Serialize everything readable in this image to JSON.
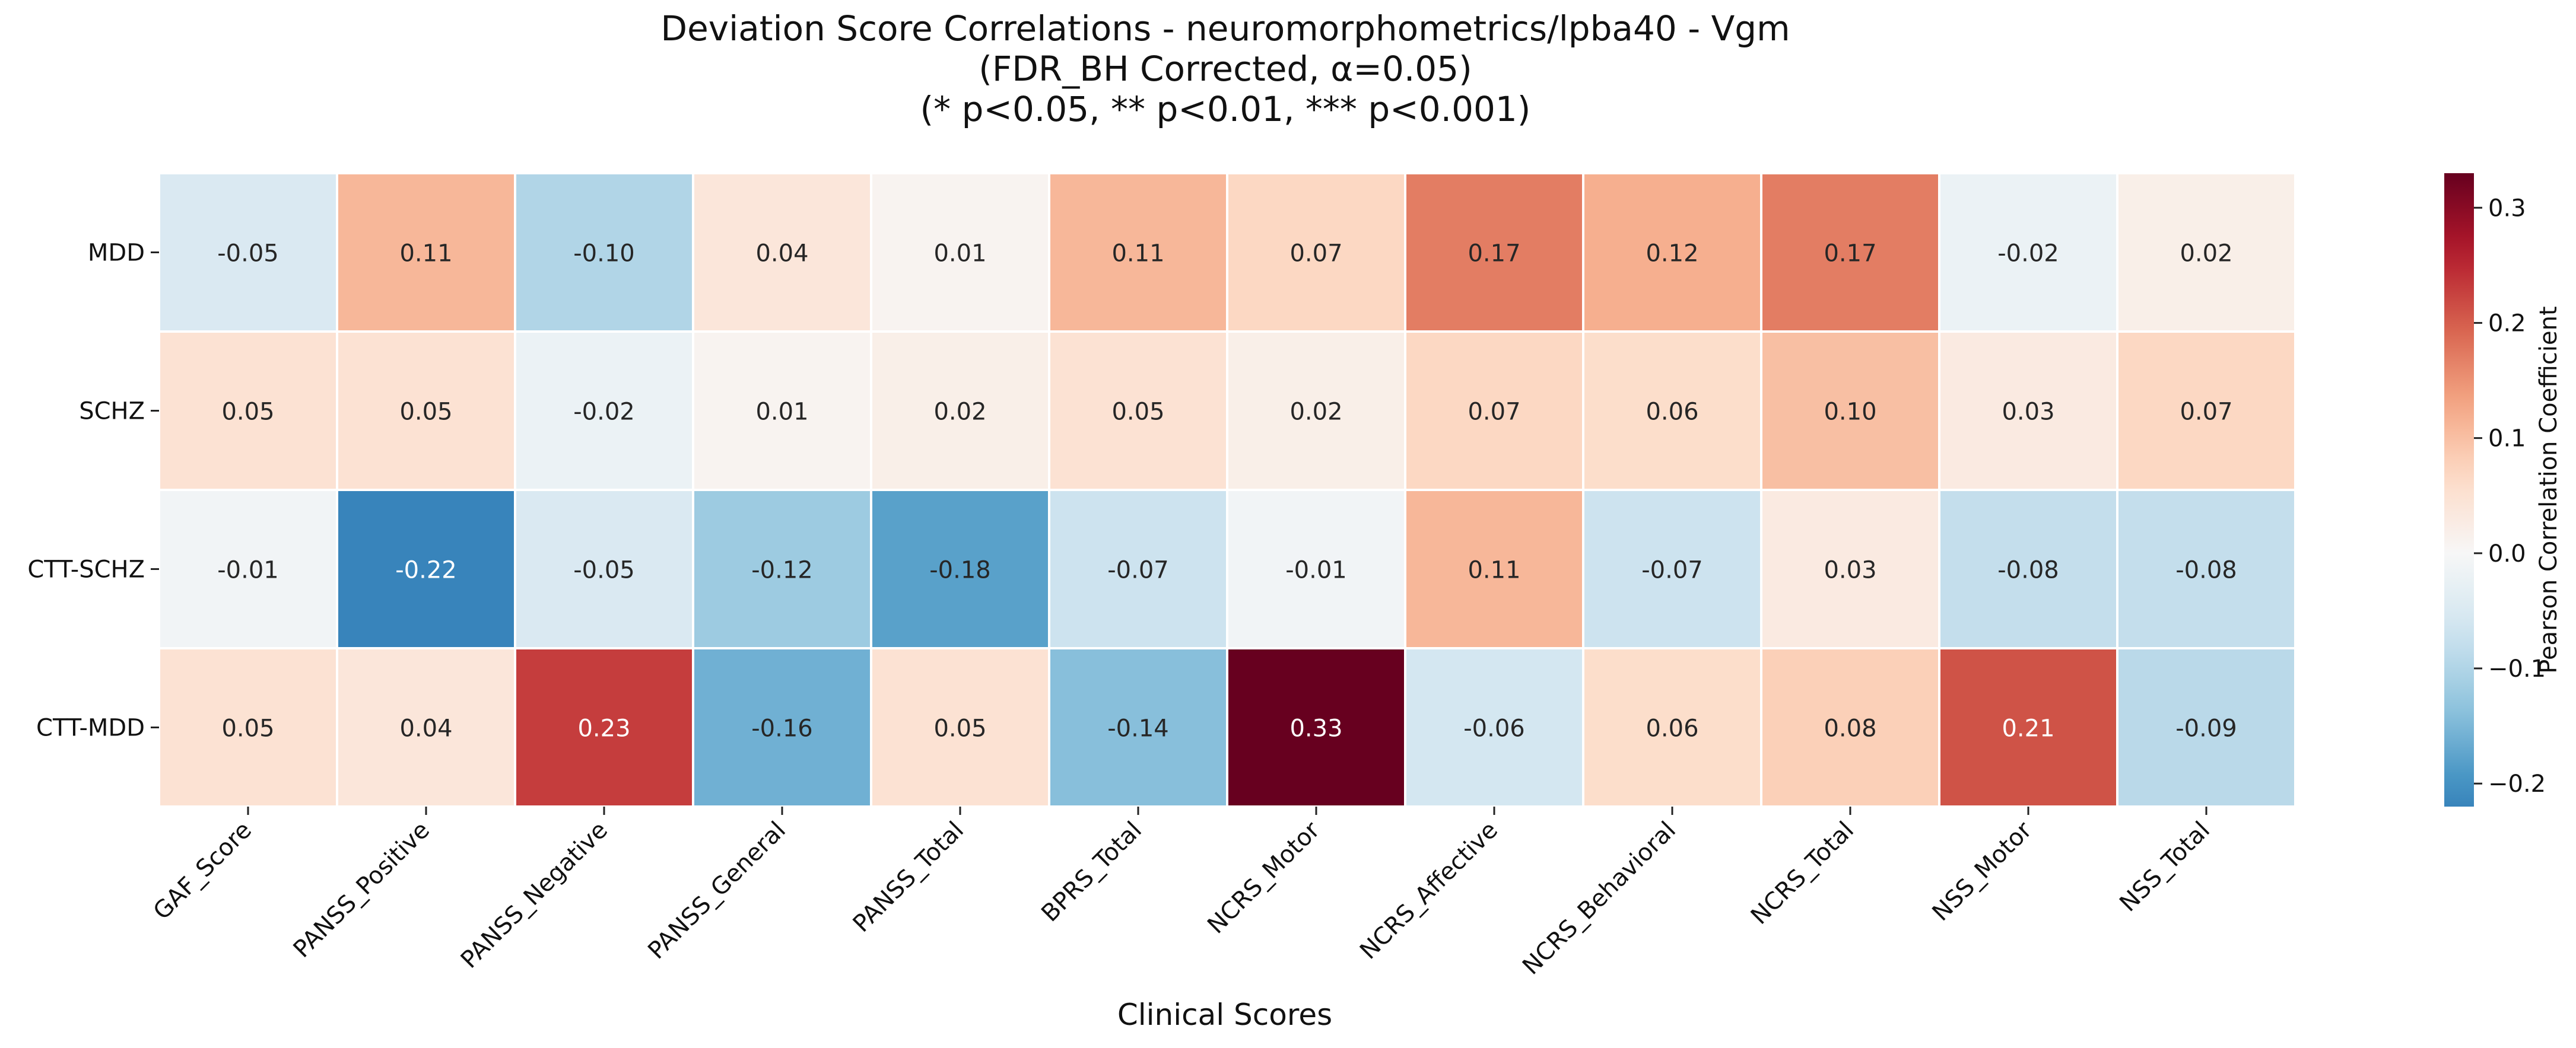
{
  "chart_data": {
    "type": "heatmap",
    "title": [
      "Deviation Score Correlations - neuromorphometrics/lpba40 - Vgm",
      "(FDR_BH Corrected, α=0.05)",
      "(* p<0.05, ** p<0.01, *** p<0.001)"
    ],
    "xlabel": "Clinical Scores",
    "ylabel": "",
    "x_categories": [
      "GAF_Score",
      "PANSS_Positive",
      "PANSS_Negative",
      "PANSS_General",
      "PANSS_Total",
      "BPRS_Total",
      "NCRS_Motor",
      "NCRS_Affective",
      "NCRS_Behavioral",
      "NCRS_Total",
      "NSS_Motor",
      "NSS_Total"
    ],
    "y_categories": [
      "MDD",
      "SCHZ",
      "CTT-SCHZ",
      "CTT-MDD"
    ],
    "values": [
      [
        -0.05,
        0.11,
        -0.1,
        0.04,
        0.01,
        0.11,
        0.07,
        0.17,
        0.12,
        0.17,
        -0.02,
        0.02
      ],
      [
        0.05,
        0.05,
        -0.02,
        0.01,
        0.02,
        0.05,
        0.02,
        0.07,
        0.06,
        0.1,
        0.03,
        0.07
      ],
      [
        -0.01,
        -0.22,
        -0.05,
        -0.12,
        -0.18,
        -0.07,
        -0.01,
        0.11,
        -0.07,
        0.03,
        -0.08,
        -0.08
      ],
      [
        0.05,
        0.04,
        0.23,
        -0.16,
        0.05,
        -0.14,
        0.33,
        -0.06,
        0.06,
        0.08,
        0.21,
        -0.09
      ]
    ],
    "colorbar": {
      "label": "Pearson Correlation Coefficient",
      "colormap": "RdBu_r",
      "range": [
        -0.22,
        0.33
      ],
      "center": 0,
      "ticks": [
        -0.2,
        -0.1,
        0.0,
        0.1,
        0.2,
        0.3
      ],
      "tick_labels": [
        "−0.2",
        "−0.1",
        "0.0",
        "0.1",
        "0.2",
        "0.3"
      ]
    }
  }
}
